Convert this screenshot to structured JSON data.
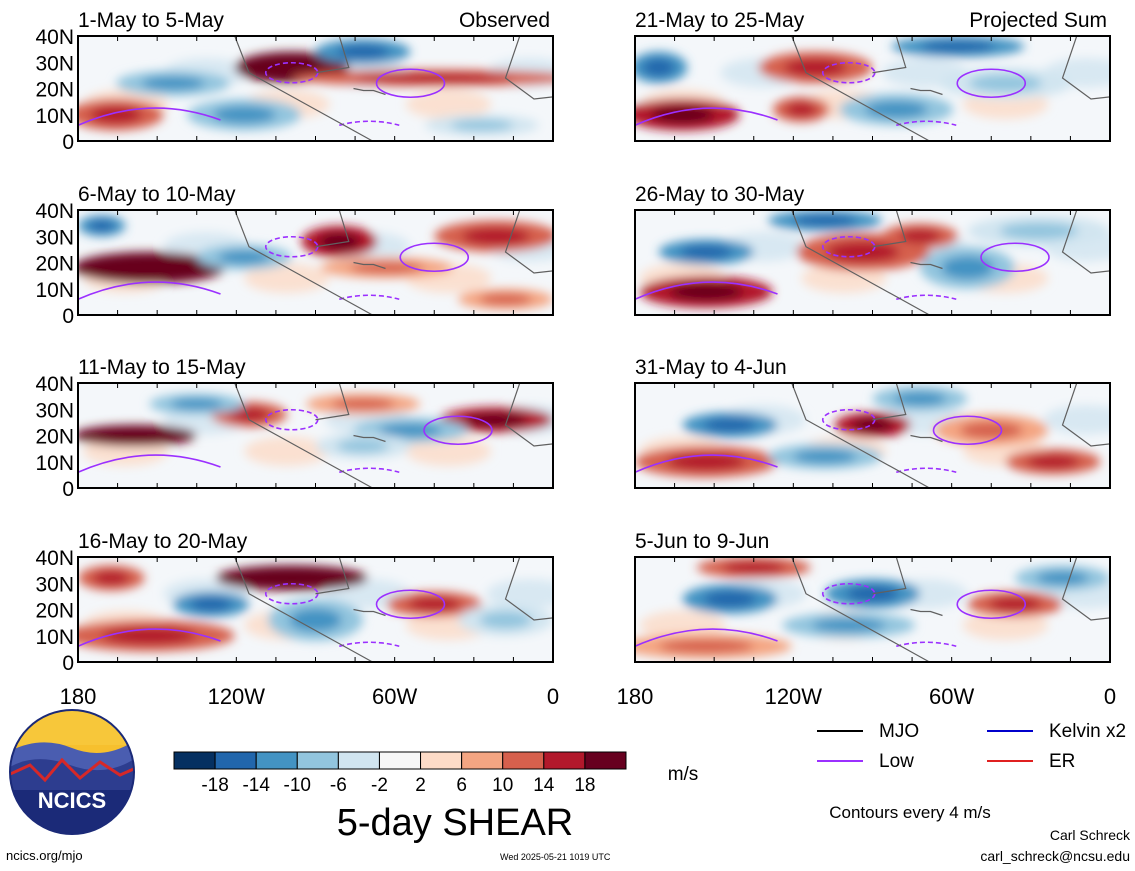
{
  "chart_data": {
    "type": "heatmap",
    "title": "5-day SHEAR",
    "units": "m/s",
    "contour_note": "Contours every 4 m/s",
    "x_ticks": [
      "180",
      "120W",
      "60W",
      "0"
    ],
    "y_ticks": [
      "40N",
      "30N",
      "20N",
      "10N",
      "0"
    ],
    "xlim": [
      180,
      360
    ],
    "ylim": [
      0,
      40
    ],
    "colorbar": {
      "labels": [
        "-18",
        "-14",
        "-10",
        "-6",
        "-2",
        "2",
        "6",
        "10",
        "14",
        "18"
      ],
      "colors": [
        "#053061",
        "#2166ac",
        "#4393c3",
        "#92c5de",
        "#d1e5f0",
        "#f7f7f7",
        "#fddbc7",
        "#f4a582",
        "#d6604d",
        "#b2182b",
        "#67001f"
      ]
    },
    "legend": [
      {
        "label": "MJO",
        "color": "#000000"
      },
      {
        "label": "Kelvin x2",
        "color": "#0000cc"
      },
      {
        "label": "Low",
        "color": "#9b30ff"
      },
      {
        "label": "ER",
        "color": "#e02020"
      }
    ],
    "panels": [
      {
        "period": "1-May to 5-May",
        "tag": "Observed"
      },
      {
        "period": "6-May to 10-May",
        "tag": ""
      },
      {
        "period": "11-May to 15-May",
        "tag": ""
      },
      {
        "period": "16-May to 20-May",
        "tag": ""
      },
      {
        "period": "21-May to 25-May",
        "tag": "Projected Sum"
      },
      {
        "period": "26-May to 30-May",
        "tag": ""
      },
      {
        "period": "31-May to 4-Jun",
        "tag": ""
      },
      {
        "period": "5-Jun to 9-Jun",
        "tag": ""
      }
    ]
  },
  "footer": {
    "site": "ncics.org/mjo",
    "timestamp": "Wed 2025-05-21 1019 UTC",
    "author": "Carl Schreck",
    "email": "carl_schreck@ncsu.edu",
    "logo_text": "NCICS"
  }
}
